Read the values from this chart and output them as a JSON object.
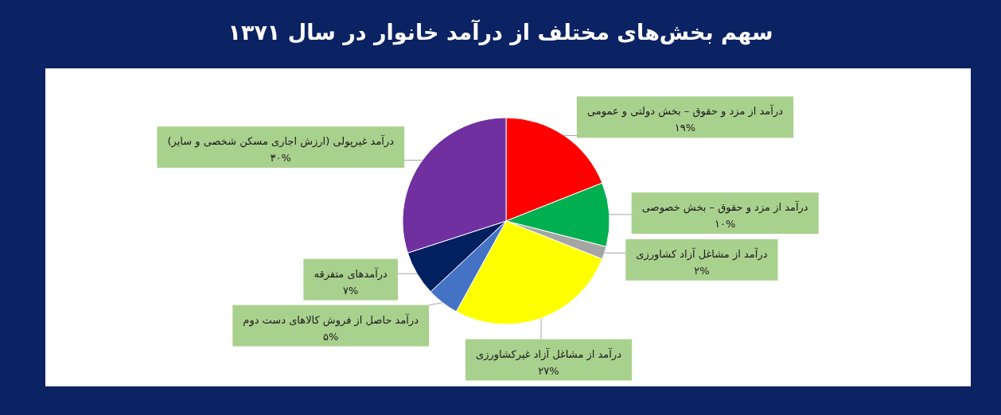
{
  "chart_data": {
    "type": "pie",
    "title": "سهم بخش‌های مختلف از درآمد خانوار در سال ۱۳۷۱",
    "categories": [
      "درآمد از مزد و حقوق – بخش دولتی و عمومی",
      "درآمد از مزد و حقوق – بخش خصوصی",
      "درآمد از مشاغل آزاد کشاورزی",
      "درآمد از مشاغل آزاد غیرکشاورزی",
      "درآمد حاصل از فروش کالاهای دست دوم",
      "درآمدهای متفرقه",
      "درآمد غیرپولی (ارزش اجاری مسکن شخصی و سایر)"
    ],
    "values": [
      19,
      10,
      2,
      27,
      5,
      7,
      30
    ],
    "colors": [
      "#ff0000",
      "#00b050",
      "#a5a5a5",
      "#ffff00",
      "#4472c4",
      "#002060",
      "#7030a0"
    ],
    "value_labels": [
      "۱۹%",
      "۱۰%",
      "۲%",
      "۲۷%",
      "۵%",
      "۷%",
      "۳۰%"
    ]
  }
}
